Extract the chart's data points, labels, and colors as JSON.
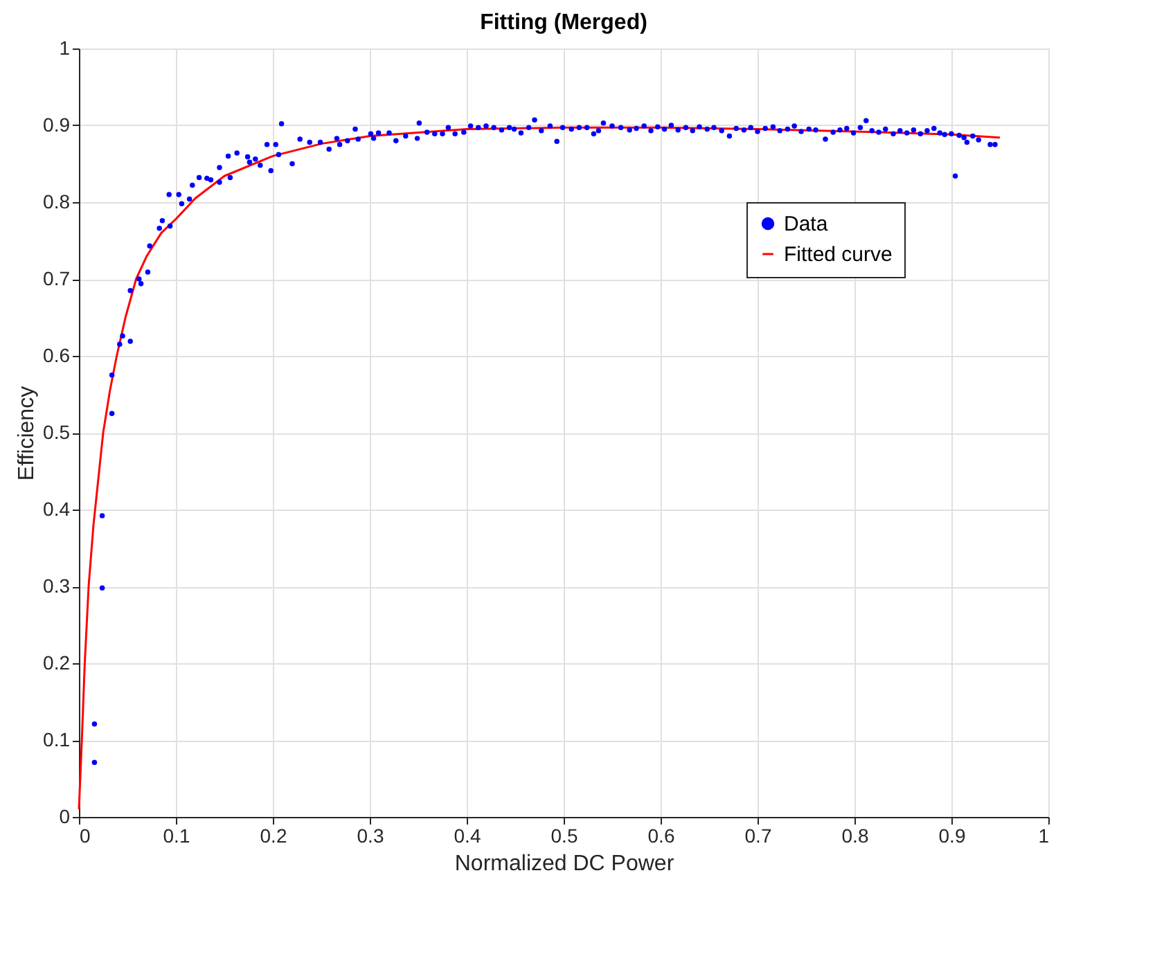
{
  "chart_data": {
    "type": "scatter",
    "title": "Fitting (Merged)",
    "xlabel": "Normalized DC Power",
    "ylabel": "Efficiency",
    "xlim": [
      0,
      1
    ],
    "ylim": [
      0,
      1
    ],
    "xticks": [
      0,
      0.1,
      0.2,
      0.3,
      0.4,
      0.5,
      0.6,
      0.7,
      0.8,
      0.9,
      1
    ],
    "yticks": [
      0,
      0.1,
      0.2,
      0.3,
      0.4,
      0.5,
      0.6,
      0.7,
      0.8,
      0.9,
      1
    ],
    "grid": true,
    "legend": "top right",
    "series": [
      {
        "name": "Data",
        "marker": "circle",
        "color": "#0000ff",
        "x": [
          0.016,
          0.016,
          0.024,
          0.024,
          0.034,
          0.034,
          0.042,
          0.045,
          0.053,
          0.053,
          0.062,
          0.064,
          0.071,
          0.073,
          0.083,
          0.086,
          0.093,
          0.094,
          0.103,
          0.106,
          0.114,
          0.117,
          0.124,
          0.132,
          0.136,
          0.145,
          0.145,
          0.154,
          0.156,
          0.163,
          0.174,
          0.176,
          0.182,
          0.187,
          0.194,
          0.198,
          0.203,
          0.206,
          0.209,
          0.22,
          0.228,
          0.238,
          0.249,
          0.258,
          0.266,
          0.269,
          0.277,
          0.285,
          0.288,
          0.301,
          0.304,
          0.309,
          0.32,
          0.327,
          0.337,
          0.349,
          0.351,
          0.359,
          0.367,
          0.375,
          0.381,
          0.388,
          0.397,
          0.404,
          0.412,
          0.42,
          0.428,
          0.436,
          0.444,
          0.449,
          0.456,
          0.464,
          0.47,
          0.477,
          0.486,
          0.493,
          0.499,
          0.508,
          0.516,
          0.524,
          0.531,
          0.536,
          0.541,
          0.55,
          0.559,
          0.568,
          0.575,
          0.583,
          0.59,
          0.597,
          0.604,
          0.611,
          0.618,
          0.626,
          0.633,
          0.64,
          0.648,
          0.655,
          0.663,
          0.671,
          0.678,
          0.686,
          0.693,
          0.7,
          0.708,
          0.716,
          0.723,
          0.731,
          0.738,
          0.745,
          0.753,
          0.76,
          0.77,
          0.778,
          0.785,
          0.792,
          0.799,
          0.806,
          0.812,
          0.818,
          0.825,
          0.832,
          0.84,
          0.847,
          0.854,
          0.861,
          0.868,
          0.875,
          0.882,
          0.888,
          0.893,
          0.9,
          0.904,
          0.908,
          0.913,
          0.916,
          0.922,
          0.928,
          0.94,
          0.945
        ],
        "values": [
          0.071,
          0.121,
          0.298,
          0.392,
          0.525,
          0.575,
          0.615,
          0.626,
          0.619,
          0.685,
          0.7,
          0.694,
          0.709,
          0.743,
          0.766,
          0.776,
          0.81,
          0.769,
          0.81,
          0.798,
          0.804,
          0.822,
          0.832,
          0.831,
          0.829,
          0.845,
          0.826,
          0.86,
          0.832,
          0.864,
          0.859,
          0.852,
          0.856,
          0.848,
          0.875,
          0.841,
          0.875,
          0.862,
          0.902,
          0.85,
          0.882,
          0.878,
          0.878,
          0.869,
          0.883,
          0.875,
          0.88,
          0.895,
          0.882,
          0.889,
          0.883,
          0.89,
          0.89,
          0.88,
          0.886,
          0.883,
          0.903,
          0.891,
          0.889,
          0.889,
          0.897,
          0.889,
          0.891,
          0.899,
          0.897,
          0.899,
          0.897,
          0.894,
          0.897,
          0.895,
          0.89,
          0.897,
          0.907,
          0.893,
          0.899,
          0.879,
          0.897,
          0.895,
          0.897,
          0.897,
          0.889,
          0.893,
          0.903,
          0.899,
          0.897,
          0.894,
          0.896,
          0.899,
          0.893,
          0.898,
          0.895,
          0.9,
          0.894,
          0.897,
          0.893,
          0.898,
          0.895,
          0.897,
          0.893,
          0.886,
          0.896,
          0.894,
          0.897,
          0.892,
          0.896,
          0.898,
          0.893,
          0.895,
          0.899,
          0.892,
          0.895,
          0.894,
          0.882,
          0.891,
          0.894,
          0.896,
          0.89,
          0.897,
          0.906,
          0.893,
          0.891,
          0.895,
          0.889,
          0.893,
          0.89,
          0.894,
          0.889,
          0.893,
          0.896,
          0.89,
          0.888,
          0.889,
          0.834,
          0.887,
          0.884,
          0.878,
          0.886,
          0.881,
          0.875,
          0.875
        ]
      },
      {
        "name": "Fitted curve",
        "type": "line",
        "marker": "none",
        "line_style": "solid",
        "color": "#ff0000",
        "x": [
          0,
          0.003,
          0.006,
          0.01,
          0.015,
          0.02,
          0.025,
          0.032,
          0.039,
          0.048,
          0.059,
          0.07,
          0.085,
          0.1,
          0.12,
          0.15,
          0.2,
          0.25,
          0.3,
          0.4,
          0.5,
          0.6,
          0.7,
          0.8,
          0.9,
          0.95
        ],
        "values": [
          0.01,
          0.1,
          0.2,
          0.3,
          0.38,
          0.44,
          0.5,
          0.555,
          0.6,
          0.65,
          0.7,
          0.73,
          0.76,
          0.778,
          0.805,
          0.834,
          0.86,
          0.876,
          0.886,
          0.895,
          0.897,
          0.897,
          0.895,
          0.892,
          0.888,
          0.884
        ]
      }
    ]
  }
}
